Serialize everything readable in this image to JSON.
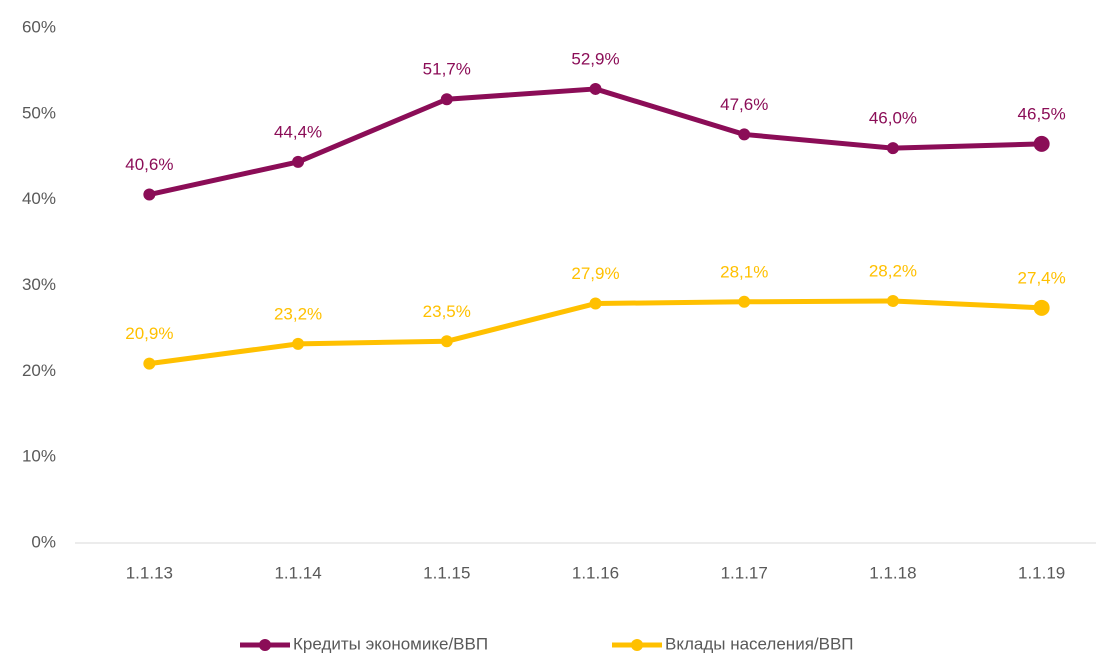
{
  "chart_data": {
    "type": "line",
    "categories": [
      "1.1.13",
      "1.1.14",
      "1.1.15",
      "1.1.16",
      "1.1.17",
      "1.1.18",
      "1.1.19"
    ],
    "series": [
      {
        "name": "Кредиты экономике/ВВП",
        "color": "#8b0d57",
        "values": [
          40.6,
          44.4,
          51.7,
          52.9,
          47.6,
          46.0,
          46.5
        ],
        "value_labels": [
          "40,6%",
          "44,4%",
          "51,7%",
          "52,9%",
          "47,6%",
          "46,0%",
          "46,5%"
        ]
      },
      {
        "name": "Вклады населения/ВВП",
        "color": "#ffc000",
        "values": [
          20.9,
          23.2,
          23.5,
          27.9,
          28.1,
          28.2,
          27.4
        ],
        "value_labels": [
          "20,9%",
          "23,2%",
          "23,5%",
          "27,9%",
          "28,1%",
          "28,2%",
          "27,4%"
        ]
      }
    ],
    "ylim": [
      0,
      60
    ],
    "yticks": [
      {
        "value": 0,
        "label": "0%"
      },
      {
        "value": 10,
        "label": "10%"
      },
      {
        "value": 20,
        "label": "20%"
      },
      {
        "value": 30,
        "label": "30%"
      },
      {
        "value": 40,
        "label": "40%"
      },
      {
        "value": 50,
        "label": "50%"
      },
      {
        "value": 60,
        "label": "60%"
      }
    ],
    "grid": false,
    "legend": "bottom"
  }
}
